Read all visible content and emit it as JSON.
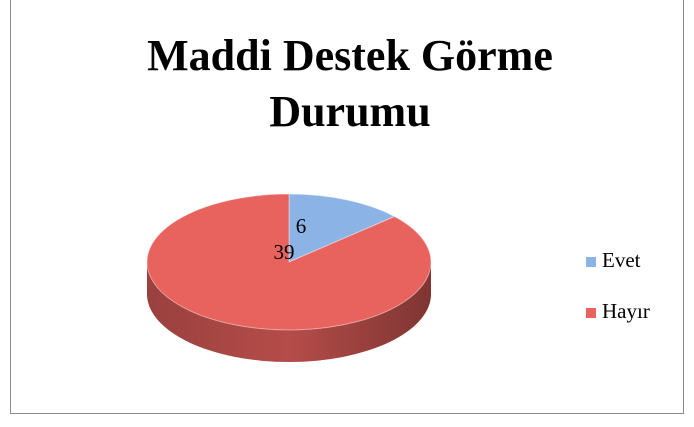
{
  "chart_data": {
    "type": "pie",
    "title": "Maddi Destek Görme Durumu",
    "categories": [
      "Evet",
      "Hayır"
    ],
    "values": [
      6,
      39
    ],
    "colors": [
      "#8cb3e6",
      "#e8625e"
    ],
    "legend": "right"
  }
}
